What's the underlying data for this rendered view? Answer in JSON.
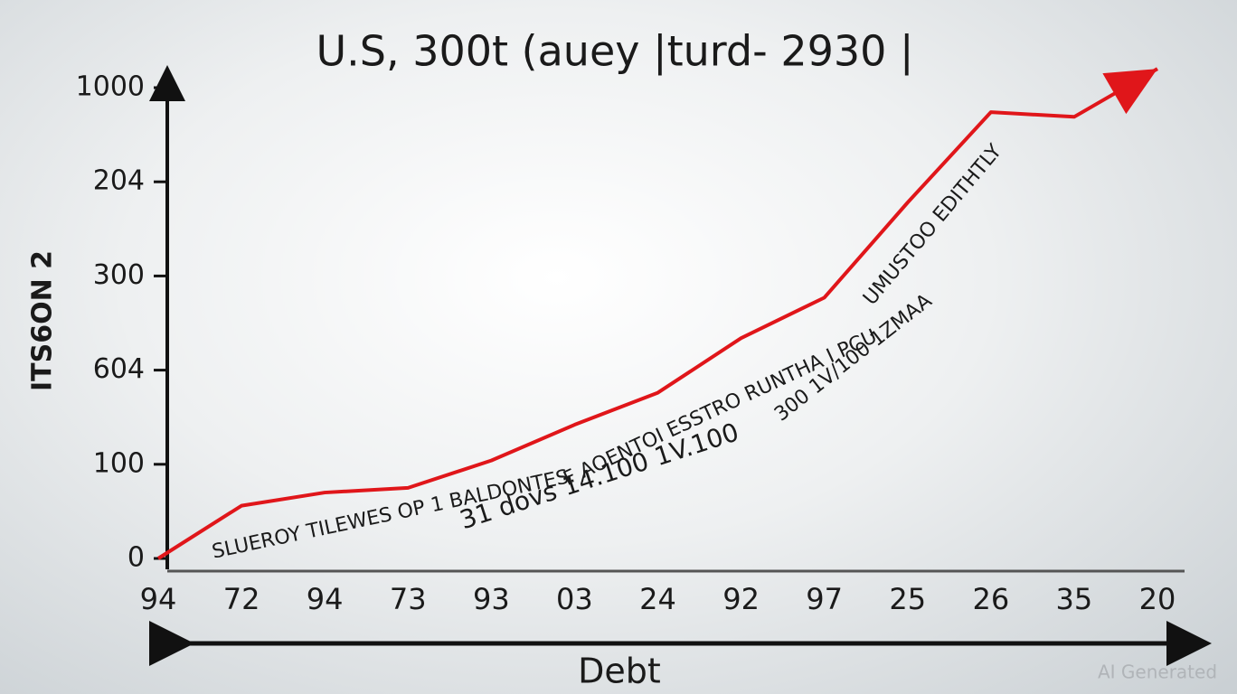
{
  "chart_data": {
    "type": "line",
    "title": "U.S, 300t (auey |turd- 2930 |",
    "y_label": "ITS6ON 2",
    "x_label": "Debt",
    "categories": [
      "94",
      "72",
      "94",
      "73",
      "93",
      "03",
      "24",
      "92",
      "97",
      "25",
      "26",
      "35",
      "20"
    ],
    "series": [
      {
        "name": "Debt",
        "color": "#e0161a",
        "values": [
          0,
          0.56,
          0.7,
          0.75,
          1.04,
          1.42,
          1.76,
          2.34,
          2.77,
          3.78,
          4.74,
          4.69,
          5.2
        ]
      }
    ],
    "ylim": [
      0,
      5.3
    ],
    "yticks": [
      0,
      {
        "value": 1,
        "label": "100"
      },
      {
        "value": 2,
        "label": "604"
      },
      {
        "value": 3,
        "label": "300"
      },
      {
        "value": 4,
        "label": "204"
      },
      {
        "value": 5,
        "label": "1000"
      }
    ],
    "grid": false,
    "legend": false,
    "annotations": [
      "SLUEROY TILEWES OP 1 BALDONTES.",
      "F AOENTOI ESSTRO RUNTHA I PCU",
      "UMUSTOO EDITHTLY",
      "31 dovs 14.100 1V.100",
      "300 1V/100 1ZMAA"
    ],
    "watermark": "AI Generated"
  }
}
